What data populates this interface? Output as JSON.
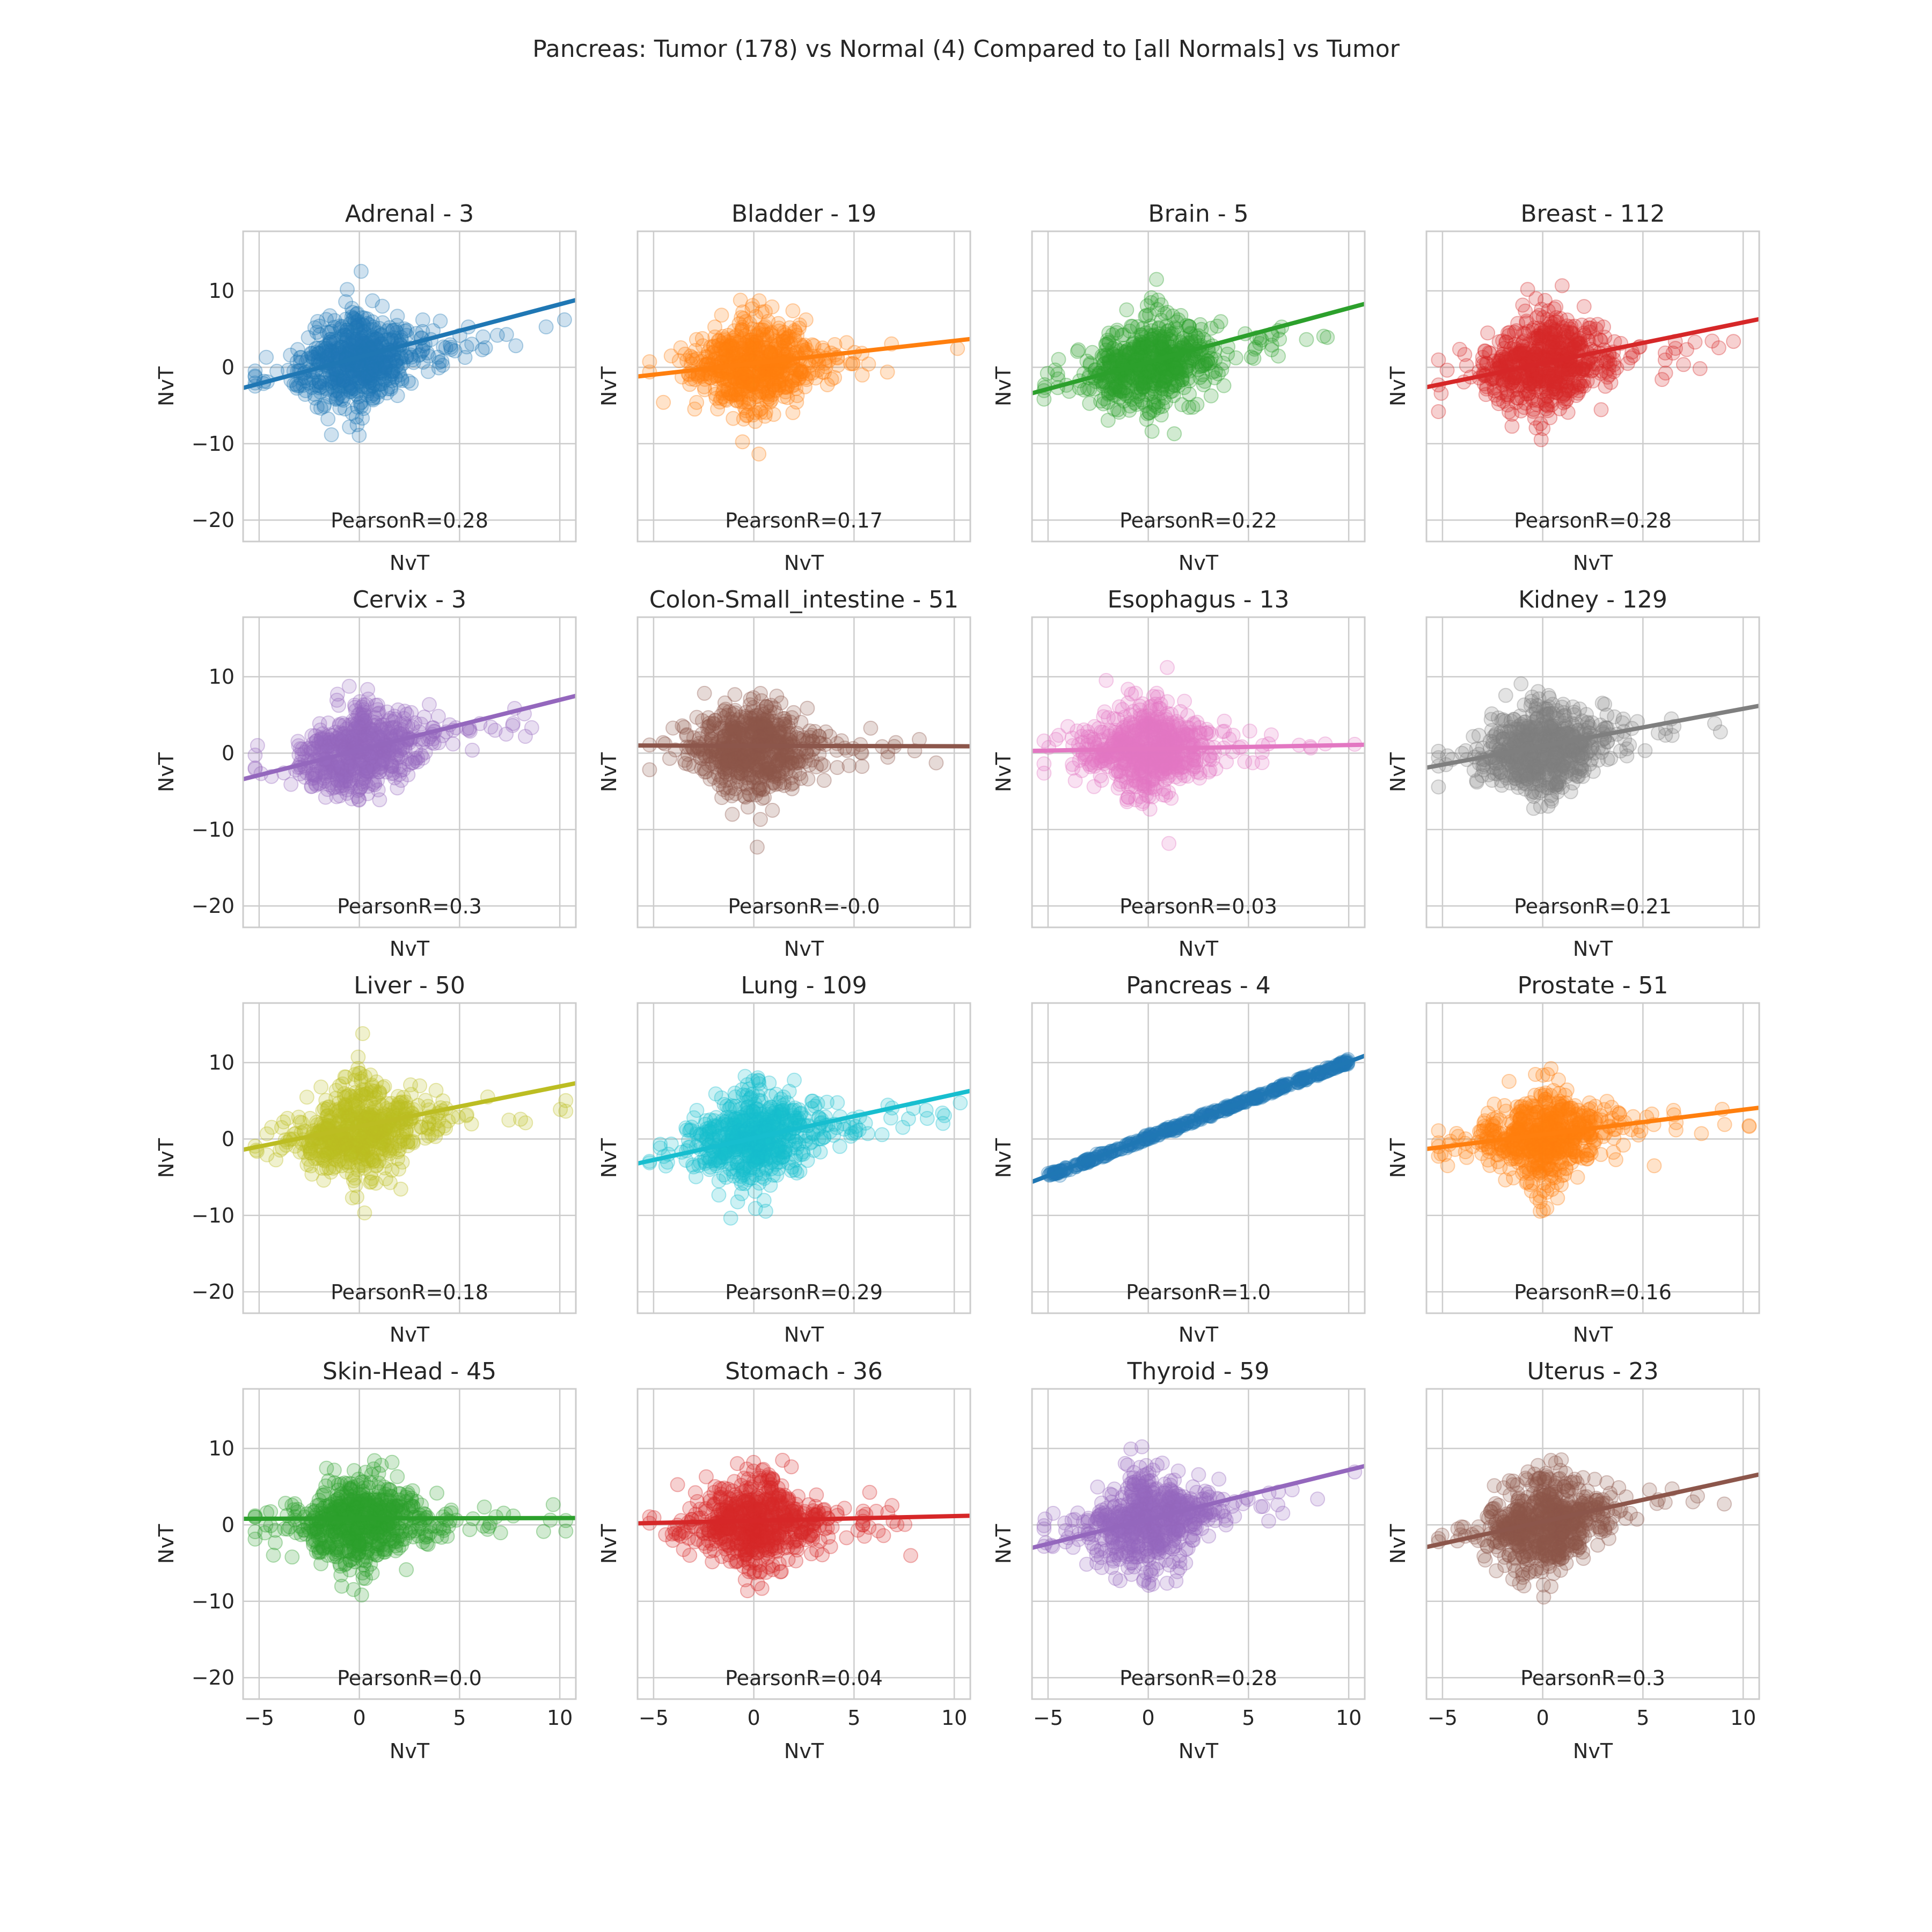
{
  "figure": {
    "title": "Pancreas: Tumor (178) vs Normal (4) Compared to [all Normals] vs Tumor"
  },
  "chart_data": {
    "type": "scatter",
    "xlim": [
      -5.8,
      10.8
    ],
    "ylim": [
      -22.8,
      17.8
    ],
    "xticks": [
      -5,
      0,
      5,
      10
    ],
    "yticks": [
      -20,
      -10,
      0,
      10
    ],
    "grid": true,
    "panels": [
      {
        "title": "Adrenal - 3",
        "xlabel": "NvT",
        "ylabel": "NvT",
        "annotation": "PearsonR=0.28",
        "color": "#1f77b4",
        "pearson_r": 0.28,
        "fit": {
          "x": [
            -5.8,
            10.8
          ],
          "y": [
            -2.7,
            8.8
          ]
        }
      },
      {
        "title": "Bladder - 19",
        "xlabel": "NvT",
        "ylabel": "NvT",
        "annotation": "PearsonR=0.17",
        "color": "#ff7f0e",
        "pearson_r": 0.17,
        "fit": {
          "x": [
            -5.8,
            10.8
          ],
          "y": [
            -1.2,
            3.7
          ]
        }
      },
      {
        "title": "Brain - 5",
        "xlabel": "NvT",
        "ylabel": "NvT",
        "annotation": "PearsonR=0.22",
        "color": "#2ca02c",
        "pearson_r": 0.22,
        "fit": {
          "x": [
            -5.8,
            10.8
          ],
          "y": [
            -3.4,
            8.3
          ]
        }
      },
      {
        "title": "Breast - 112",
        "xlabel": "NvT",
        "ylabel": "NvT",
        "annotation": "PearsonR=0.28",
        "color": "#d62728",
        "pearson_r": 0.28,
        "fit": {
          "x": [
            -5.8,
            10.8
          ],
          "y": [
            -2.6,
            6.3
          ]
        }
      },
      {
        "title": "Cervix - 3",
        "xlabel": "NvT",
        "ylabel": "NvT",
        "annotation": "PearsonR=0.3",
        "color": "#9467bd",
        "pearson_r": 0.3,
        "fit": {
          "x": [
            -5.8,
            10.8
          ],
          "y": [
            -3.4,
            7.5
          ]
        }
      },
      {
        "title": "Colon-Small_intestine - 51",
        "xlabel": "NvT",
        "ylabel": "NvT",
        "annotation": "PearsonR=-0.0",
        "color": "#8c564b",
        "pearson_r": -0.0,
        "fit": {
          "x": [
            -5.8,
            10.8
          ],
          "y": [
            1.0,
            0.9
          ]
        }
      },
      {
        "title": "Esophagus - 13",
        "xlabel": "NvT",
        "ylabel": "NvT",
        "annotation": "PearsonR=0.03",
        "color": "#e377c2",
        "pearson_r": 0.03,
        "fit": {
          "x": [
            -5.8,
            10.8
          ],
          "y": [
            0.3,
            1.1
          ]
        }
      },
      {
        "title": "Kidney - 129",
        "xlabel": "NvT",
        "ylabel": "NvT",
        "annotation": "PearsonR=0.21",
        "color": "#7f7f7f",
        "pearson_r": 0.21,
        "fit": {
          "x": [
            -5.8,
            10.8
          ],
          "y": [
            -1.9,
            6.2
          ]
        }
      },
      {
        "title": "Liver - 50",
        "xlabel": "NvT",
        "ylabel": "NvT",
        "annotation": "PearsonR=0.18",
        "color": "#bcbd22",
        "pearson_r": 0.18,
        "fit": {
          "x": [
            -5.8,
            10.8
          ],
          "y": [
            -1.4,
            7.3
          ]
        }
      },
      {
        "title": "Lung - 109",
        "xlabel": "NvT",
        "ylabel": "NvT",
        "annotation": "PearsonR=0.29",
        "color": "#17becf",
        "pearson_r": 0.29,
        "fit": {
          "x": [
            -5.8,
            10.8
          ],
          "y": [
            -3.2,
            6.3
          ]
        }
      },
      {
        "title": "Pancreas - 4",
        "xlabel": "NvT",
        "ylabel": "NvT",
        "annotation": "PearsonR=1.0",
        "color": "#1f77b4",
        "pearson_r": 1.0,
        "fit": {
          "x": [
            -5.8,
            10.8
          ],
          "y": [
            -5.6,
            10.9
          ]
        }
      },
      {
        "title": "Prostate - 51",
        "xlabel": "NvT",
        "ylabel": "NvT",
        "annotation": "PearsonR=0.16",
        "color": "#ff7f0e",
        "pearson_r": 0.16,
        "fit": {
          "x": [
            -5.8,
            10.8
          ],
          "y": [
            -1.3,
            4.1
          ]
        }
      },
      {
        "title": "Skin-Head - 45",
        "xlabel": "NvT",
        "ylabel": "NvT",
        "annotation": "PearsonR=0.0",
        "color": "#2ca02c",
        "pearson_r": 0.0,
        "fit": {
          "x": [
            -5.8,
            10.8
          ],
          "y": [
            0.8,
            0.9
          ]
        }
      },
      {
        "title": "Stomach - 36",
        "xlabel": "NvT",
        "ylabel": "NvT",
        "annotation": "PearsonR=0.04",
        "color": "#d62728",
        "pearson_r": 0.04,
        "fit": {
          "x": [
            -5.8,
            10.8
          ],
          "y": [
            0.2,
            1.2
          ]
        }
      },
      {
        "title": "Thyroid - 59",
        "xlabel": "NvT",
        "ylabel": "NvT",
        "annotation": "PearsonR=0.28",
        "color": "#9467bd",
        "pearson_r": 0.28,
        "fit": {
          "x": [
            -5.8,
            10.8
          ],
          "y": [
            -3.0,
            7.7
          ]
        }
      },
      {
        "title": "Uterus - 23",
        "xlabel": "NvT",
        "ylabel": "NvT",
        "annotation": "PearsonR=0.3",
        "color": "#8c564b",
        "pearson_r": 0.3,
        "fit": {
          "x": [
            -5.8,
            10.8
          ],
          "y": [
            -2.9,
            6.6
          ]
        }
      }
    ]
  }
}
